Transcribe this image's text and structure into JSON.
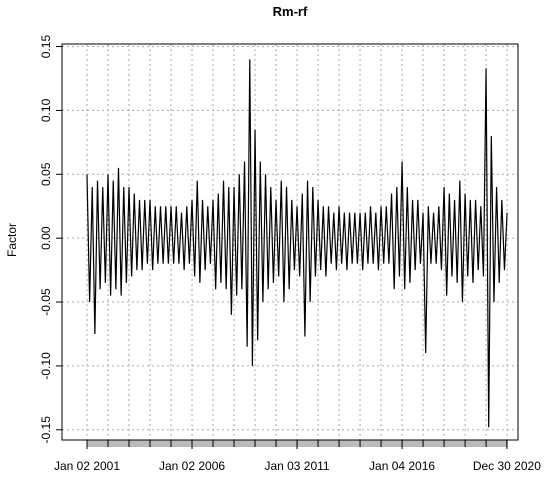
{
  "chart_data": {
    "type": "line",
    "title": "Rm-rf",
    "y_label": "Factor",
    "x": [
      2001,
      2001.125,
      2001.25,
      2001.375,
      2001.5,
      2001.625,
      2001.75,
      2001.875,
      2002,
      2002.125,
      2002.25,
      2002.375,
      2002.5,
      2002.625,
      2002.75,
      2002.875,
      2003,
      2003.125,
      2003.25,
      2003.375,
      2003.5,
      2003.625,
      2003.75,
      2003.875,
      2004,
      2004.125,
      2004.25,
      2004.375,
      2004.5,
      2004.625,
      2004.75,
      2004.875,
      2005,
      2005.125,
      2005.25,
      2005.375,
      2005.5,
      2005.625,
      2005.75,
      2005.875,
      2006,
      2006.125,
      2006.25,
      2006.375,
      2006.5,
      2006.625,
      2006.75,
      2006.875,
      2007,
      2007.125,
      2007.25,
      2007.375,
      2007.5,
      2007.625,
      2007.75,
      2007.875,
      2008,
      2008.125,
      2008.25,
      2008.375,
      2008.5,
      2008.625,
      2008.75,
      2008.875,
      2009,
      2009.125,
      2009.25,
      2009.375,
      2009.5,
      2009.625,
      2009.75,
      2009.875,
      2010,
      2010.125,
      2010.25,
      2010.375,
      2010.5,
      2010.625,
      2010.75,
      2010.875,
      2011,
      2011.125,
      2011.25,
      2011.375,
      2011.5,
      2011.625,
      2011.75,
      2011.875,
      2012,
      2012.125,
      2012.25,
      2012.375,
      2012.5,
      2012.625,
      2012.75,
      2012.875,
      2013,
      2013.125,
      2013.25,
      2013.375,
      2013.5,
      2013.625,
      2013.75,
      2013.875,
      2014,
      2014.125,
      2014.25,
      2014.375,
      2014.5,
      2014.625,
      2014.75,
      2014.875,
      2015,
      2015.125,
      2015.25,
      2015.375,
      2015.5,
      2015.625,
      2015.75,
      2015.875,
      2016,
      2016.125,
      2016.25,
      2016.375,
      2016.5,
      2016.625,
      2016.75,
      2016.875,
      2017,
      2017.125,
      2017.25,
      2017.375,
      2017.5,
      2017.625,
      2017.75,
      2017.875,
      2018,
      2018.125,
      2018.25,
      2018.375,
      2018.5,
      2018.625,
      2018.75,
      2018.875,
      2019,
      2019.125,
      2019.25,
      2019.375,
      2019.5,
      2019.625,
      2019.75,
      2019.875,
      2020,
      2020.125,
      2020.25,
      2020.375,
      2020.5,
      2020.625,
      2020.75,
      2020.875,
      2021
    ],
    "values": [
      0.05,
      -0.05,
      0.04,
      -0.075,
      0.045,
      -0.04,
      0.04,
      -0.035,
      0.05,
      -0.045,
      0.045,
      -0.04,
      0.055,
      -0.045,
      0.04,
      -0.035,
      0.04,
      -0.03,
      0.035,
      -0.025,
      0.03,
      -0.025,
      0.03,
      -0.02,
      0.03,
      -0.025,
      0.025,
      -0.02,
      0.025,
      -0.02,
      0.025,
      -0.02,
      0.025,
      -0.02,
      0.025,
      -0.02,
      0.02,
      -0.025,
      0.025,
      -0.02,
      0.03,
      -0.03,
      0.045,
      -0.035,
      0.03,
      -0.025,
      0.025,
      -0.02,
      0.03,
      -0.04,
      0.035,
      -0.035,
      0.045,
      -0.04,
      0.04,
      -0.06,
      0.04,
      -0.045,
      0.05,
      -0.04,
      0.06,
      -0.085,
      0.14,
      -0.1,
      0.085,
      -0.08,
      0.06,
      -0.05,
      0.05,
      -0.04,
      0.04,
      -0.035,
      0.03,
      -0.03,
      0.045,
      -0.05,
      0.04,
      -0.04,
      0.03,
      -0.025,
      0.025,
      -0.03,
      0.035,
      -0.077,
      0.045,
      -0.05,
      0.04,
      -0.03,
      0.03,
      -0.025,
      0.025,
      -0.03,
      0.025,
      -0.02,
      0.02,
      -0.025,
      0.025,
      -0.02,
      0.02,
      -0.025,
      0.02,
      -0.02,
      0.02,
      -0.02,
      0.02,
      -0.025,
      0.02,
      -0.02,
      0.025,
      -0.02,
      0.02,
      -0.025,
      0.025,
      -0.02,
      0.025,
      -0.02,
      0.035,
      -0.04,
      0.04,
      -0.03,
      0.06,
      -0.04,
      0.04,
      -0.035,
      0.03,
      -0.025,
      0.03,
      -0.02,
      0.02,
      -0.09,
      0.025,
      -0.02,
      0.02,
      -0.02,
      0.025,
      -0.025,
      0.04,
      -0.045,
      0.035,
      -0.03,
      0.03,
      -0.035,
      0.045,
      -0.05,
      0.035,
      -0.03,
      0.03,
      -0.035,
      0.03,
      -0.025,
      0.025,
      -0.03,
      0.133,
      -0.148,
      0.08,
      -0.05,
      0.04,
      -0.035,
      0.03,
      -0.025,
      0.02
    ],
    "color": "#000000",
    "xlim": [
      1999.81,
      2021.52
    ],
    "xticks": [
      {
        "value": 2001,
        "label": "Jan 02 2001"
      },
      {
        "value": 2006,
        "label": "Jan 02 2006"
      },
      {
        "value": 2011,
        "label": "Jan 03 2011"
      },
      {
        "value": 2016,
        "label": "Jan 04 2016"
      },
      {
        "value": 2020.99,
        "label": "Dec 30 2020"
      }
    ],
    "xgrid": [
      2001,
      2002,
      2003,
      2004,
      2005,
      2006,
      2007,
      2008,
      2009,
      2010,
      2011,
      2012,
      2013,
      2014,
      2015,
      2016,
      2017,
      2018,
      2019,
      2020,
      2021
    ],
    "ylim": [
      -0.158,
      0.152
    ],
    "yticks": [
      -0.15,
      {
        "value": -0.1,
        "label": "-0.10"
      },
      -0.05,
      {
        "value": 0,
        "label": "0.00"
      },
      0.05,
      {
        "value": 0.1,
        "label": "0.10"
      },
      0.15
    ],
    "grid": true
  }
}
